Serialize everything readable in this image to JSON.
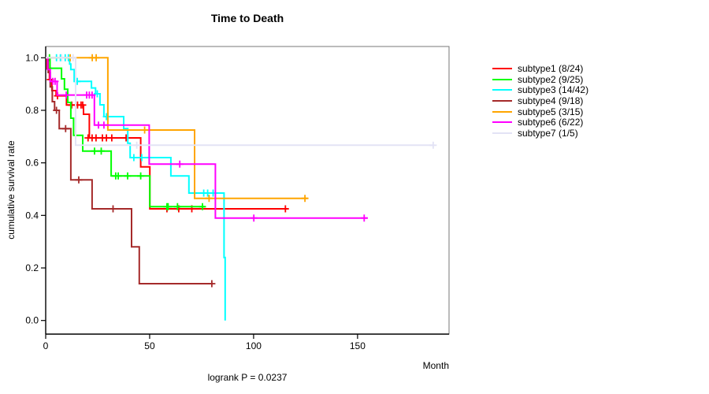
{
  "title": "Time to Death",
  "footer": "logrank P = 0.0237",
  "x_axis_label": "Month",
  "y_axis_label": "cumulative survival rate",
  "chart_data": {
    "type": "line",
    "variant": "kaplan-meier-step",
    "title": "Time to Death",
    "xlabel": "Month",
    "ylabel": "cumulative survival rate",
    "annotation": "logrank P = 0.0237",
    "xlim": [
      0,
      194
    ],
    "ylim": [
      0.0,
      1.0
    ],
    "x_ticks": [
      0,
      50,
      100,
      150
    ],
    "y_ticks": [
      0.0,
      0.2,
      0.4,
      0.6,
      0.8,
      1.0
    ],
    "grid": false,
    "legend_position": "right-outside",
    "axis_color": "#000000",
    "box_color": "#777777",
    "series": [
      {
        "name": "subtype1 (8/24)",
        "color": "#ff0000",
        "steps": [
          [
            0,
            1.0
          ],
          [
            0.7,
            0.958
          ],
          [
            1.8,
            0.917
          ],
          [
            3.0,
            0.875
          ],
          [
            5.0,
            0.855
          ],
          [
            10.0,
            0.82
          ],
          [
            18.2,
            0.785
          ],
          [
            21.0,
            0.695
          ],
          [
            45.7,
            0.585
          ],
          [
            50.1,
            0.425
          ],
          [
            116.5,
            0.425
          ]
        ],
        "censors": [
          [
            2.2,
            0.917
          ],
          [
            5.7,
            0.855
          ],
          [
            12.5,
            0.82
          ],
          [
            15.3,
            0.82
          ],
          [
            17.0,
            0.82
          ],
          [
            17.8,
            0.82
          ],
          [
            20.4,
            0.695
          ],
          [
            22.3,
            0.695
          ],
          [
            24.2,
            0.695
          ],
          [
            27.3,
            0.695
          ],
          [
            29.2,
            0.695
          ],
          [
            31.8,
            0.695
          ],
          [
            38.7,
            0.695
          ],
          [
            58.3,
            0.425
          ],
          [
            64.0,
            0.425
          ],
          [
            70.3,
            0.425
          ],
          [
            115.3,
            0.425
          ]
        ]
      },
      {
        "name": "subtype2 (9/25)",
        "color": "#00ff00",
        "steps": [
          [
            0,
            1.0
          ],
          [
            2.1,
            0.96
          ],
          [
            7.6,
            0.92
          ],
          [
            9.0,
            0.88
          ],
          [
            10.6,
            0.83
          ],
          [
            12.1,
            0.77
          ],
          [
            13.4,
            0.705
          ],
          [
            17.8,
            0.645
          ],
          [
            31.5,
            0.55
          ],
          [
            50.1,
            0.433
          ],
          [
            76.7,
            0.433
          ]
        ],
        "censors": [
          [
            1.8,
            1.0
          ],
          [
            23.5,
            0.645
          ],
          [
            26.7,
            0.645
          ],
          [
            33.7,
            0.55
          ],
          [
            34.9,
            0.55
          ],
          [
            39.4,
            0.55
          ],
          [
            45.7,
            0.55
          ],
          [
            58.3,
            0.433
          ],
          [
            58.9,
            0.433
          ],
          [
            63.4,
            0.433
          ],
          [
            75.4,
            0.433
          ]
        ]
      },
      {
        "name": "subtype3 (14/42)",
        "color": "#00ffff",
        "steps": [
          [
            0,
            1.0
          ],
          [
            11.5,
            0.976
          ],
          [
            12.1,
            0.955
          ],
          [
            13.7,
            0.91
          ],
          [
            22.0,
            0.885
          ],
          [
            24.0,
            0.863
          ],
          [
            26.1,
            0.821
          ],
          [
            28.0,
            0.776
          ],
          [
            37.5,
            0.73
          ],
          [
            39.5,
            0.675
          ],
          [
            40.6,
            0.62
          ],
          [
            60.2,
            0.55
          ],
          [
            68.9,
            0.485
          ],
          [
            85.8,
            0.24
          ],
          [
            86.3,
            0.0
          ]
        ],
        "censors": [
          [
            5.2,
            1.0
          ],
          [
            7.1,
            1.0
          ],
          [
            9.4,
            1.0
          ],
          [
            10.9,
            1.0
          ],
          [
            15.2,
            0.91
          ],
          [
            24.8,
            0.863
          ],
          [
            29.2,
            0.776
          ],
          [
            29.9,
            0.776
          ],
          [
            42.4,
            0.62
          ],
          [
            46.2,
            0.62
          ],
          [
            76.0,
            0.485
          ],
          [
            77.9,
            0.485
          ],
          [
            80.5,
            0.485
          ]
        ]
      },
      {
        "name": "subtype4 (9/18)",
        "color": "#a52a2a",
        "steps": [
          [
            0,
            1.0
          ],
          [
            1.2,
            0.944
          ],
          [
            2.2,
            0.889
          ],
          [
            3.2,
            0.833
          ],
          [
            4.3,
            0.8
          ],
          [
            6.5,
            0.73
          ],
          [
            12.1,
            0.535
          ],
          [
            22.3,
            0.425
          ],
          [
            41.3,
            0.28
          ],
          [
            45.0,
            0.14
          ],
          [
            80.5,
            0.14
          ]
        ],
        "censors": [
          [
            5.2,
            0.8
          ],
          [
            9.6,
            0.73
          ],
          [
            15.9,
            0.535
          ],
          [
            32.4,
            0.425
          ],
          [
            79.9,
            0.14
          ]
        ]
      },
      {
        "name": "subtype5 (3/15)",
        "color": "#ffa500",
        "steps": [
          [
            0,
            1.0
          ],
          [
            29.9,
            0.725
          ],
          [
            71.6,
            0.465
          ],
          [
            126.0,
            0.465
          ]
        ],
        "censors": [
          [
            11.8,
            1.0
          ],
          [
            22.4,
            1.0
          ],
          [
            24.3,
            1.0
          ],
          [
            47.6,
            0.725
          ],
          [
            78.6,
            0.465
          ],
          [
            124.7,
            0.465
          ]
        ]
      },
      {
        "name": "subtype6 (6/22)",
        "color": "#ff00ff",
        "steps": [
          [
            0,
            1.0
          ],
          [
            1.0,
            0.955
          ],
          [
            2.2,
            0.91
          ],
          [
            5.5,
            0.858
          ],
          [
            23.4,
            0.744
          ],
          [
            49.8,
            0.595
          ],
          [
            81.6,
            0.39
          ],
          [
            154.9,
            0.39
          ]
        ],
        "censors": [
          [
            3.4,
            0.91
          ],
          [
            4.5,
            0.91
          ],
          [
            9.9,
            0.858
          ],
          [
            19.7,
            0.858
          ],
          [
            21.0,
            0.858
          ],
          [
            22.3,
            0.858
          ],
          [
            25.4,
            0.744
          ],
          [
            28.0,
            0.744
          ],
          [
            64.5,
            0.595
          ],
          [
            100.1,
            0.39
          ],
          [
            153.2,
            0.39
          ]
        ]
      },
      {
        "name": "subtype7 (1/5)",
        "color": "#e3e3f5",
        "steps": [
          [
            0,
            1.0
          ],
          [
            14.4,
            0.667
          ],
          [
            187.0,
            0.667
          ]
        ],
        "censors": [
          [
            7.7,
            1.0
          ],
          [
            13.2,
            1.0
          ],
          [
            43.8,
            0.667
          ],
          [
            186.4,
            0.667
          ]
        ]
      }
    ]
  },
  "legend": {
    "items": [
      {
        "label": "subtype1 (8/24)",
        "color": "#ff0000"
      },
      {
        "label": "subtype2 (9/25)",
        "color": "#00ff00"
      },
      {
        "label": "subtype3 (14/42)",
        "color": "#00ffff"
      },
      {
        "label": "subtype4 (9/18)",
        "color": "#a52a2a"
      },
      {
        "label": "subtype5 (3/15)",
        "color": "#ffa500"
      },
      {
        "label": "subtype6 (6/22)",
        "color": "#ff00ff"
      },
      {
        "label": "subtype7 (1/5)",
        "color": "#e3e3f5"
      }
    ]
  }
}
